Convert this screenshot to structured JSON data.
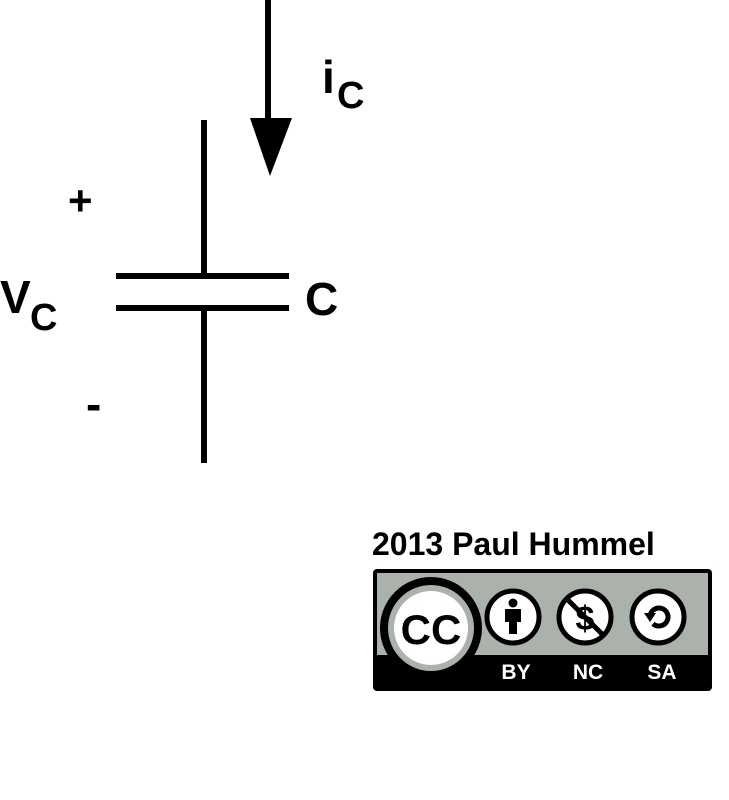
{
  "diagram": {
    "current_label": {
      "main": "i",
      "sub": "C"
    },
    "voltage_label": {
      "main": "V",
      "sub": "C"
    },
    "capacitor_label": "C",
    "plus_sign": "+",
    "minus_sign": "-"
  },
  "license": {
    "credit": "2013 Paul Hummel",
    "cc_logo": "CC",
    "badge_items": [
      "BY",
      "NC",
      "SA"
    ],
    "icons": [
      "cc-icon",
      "attribution-person-icon",
      "noncommercial-dollar-icon",
      "sharealike-icon"
    ],
    "colors": {
      "badge_bg": "#aab2ab",
      "badge_dark": "#000000"
    }
  },
  "colors": {
    "ink": "#000000",
    "background": "#ffffff"
  }
}
